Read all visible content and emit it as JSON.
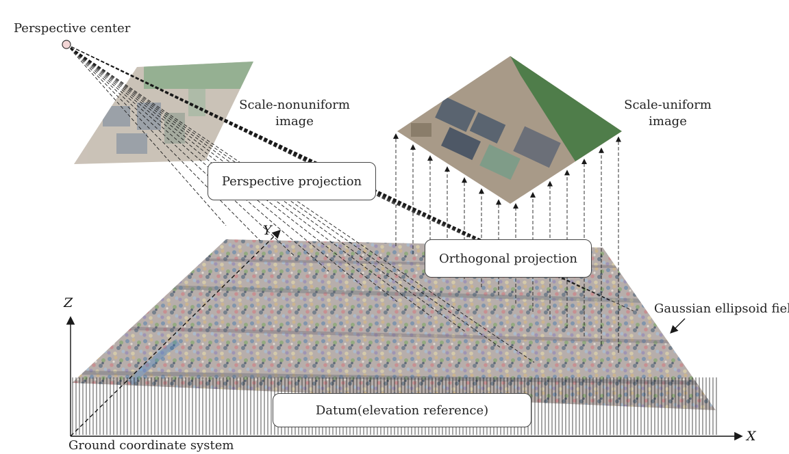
{
  "labels": {
    "perspective_center": "Perspective center",
    "scale_nonuniform_line1": "Scale-nonuniform",
    "scale_nonuniform_line2": "image",
    "scale_uniform_line1": "Scale-uniform",
    "scale_uniform_line2": "image",
    "gaussian_field": "Gaussian ellipsoid field",
    "ground_coordinate_system": "Ground coordinate system"
  },
  "boxes": {
    "perspective_projection": "Perspective projection",
    "orthogonal_projection": "Orthogonal projection",
    "datum": "Datum(elevation reference)"
  },
  "axes": {
    "x": "X",
    "y": "Y",
    "z": "Z"
  },
  "colors": {
    "line": "#1a1a1a",
    "imagery_green": "#4f7d4a",
    "imagery_building": "#5a6470",
    "imagery_ground": "#a89a88"
  }
}
